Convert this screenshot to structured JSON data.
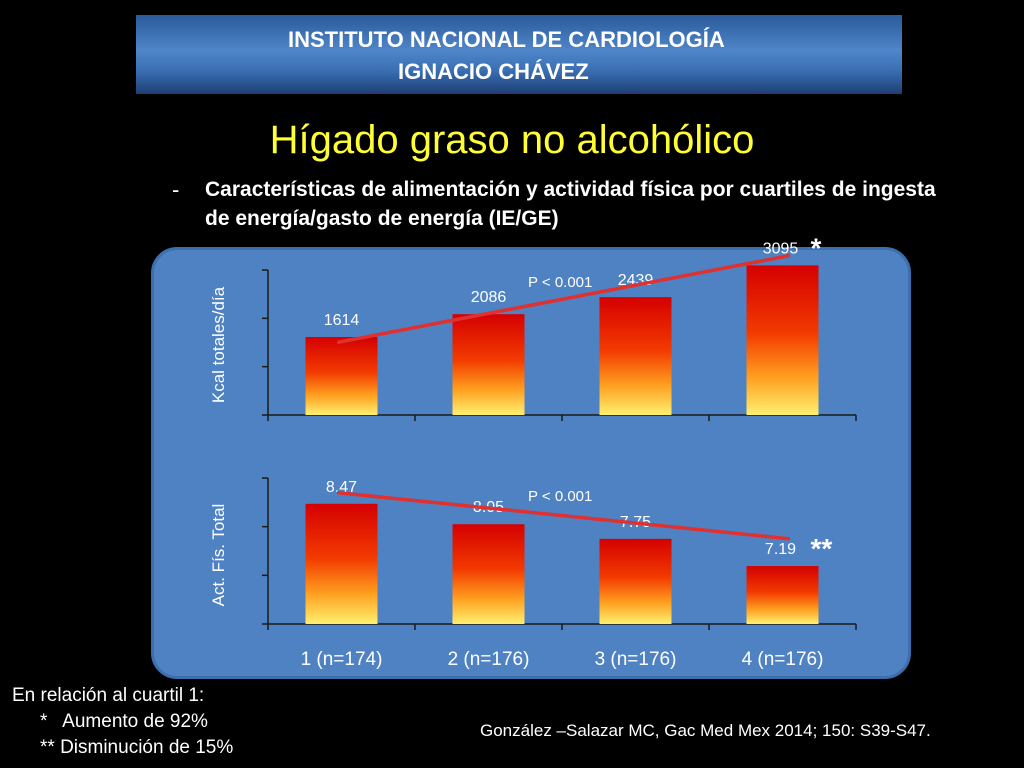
{
  "header": {
    "line1": "INSTITUTO NACIONAL DE CARDIOLOGÍA",
    "line2": "IGNACIO CHÁVEZ"
  },
  "title": "Hígado graso no alcohólico",
  "bullet": {
    "marker": "-",
    "text": "Características de alimentación y actividad física por cuartiles de ingesta de energía/gasto de energía (IE/GE)"
  },
  "chart_data": [
    {
      "type": "bar",
      "ylabel": "Kcal totales/día",
      "categories": [
        "1 (n=174)",
        "2 (n=176)",
        "3 (n=176)",
        "4 (n=176)"
      ],
      "values": [
        1614,
        2086,
        2439,
        3095
      ],
      "data_labels": [
        "1614",
        "2086",
        "2439",
        "3095"
      ],
      "ylim": [
        0,
        3000
      ],
      "trend_label": "P < 0.001",
      "trend": [
        1500,
        3300
      ],
      "marker_index": 3,
      "marker": "*"
    },
    {
      "type": "bar",
      "ylabel": "Act. Fís. Total",
      "categories": [
        "1 (n=174)",
        "2 (n=176)",
        "3 (n=176)",
        "4 (n=176)"
      ],
      "values": [
        8.47,
        8.05,
        7.75,
        7.19
      ],
      "data_labels": [
        "8.47",
        "8.05",
        "7.75",
        "7.19"
      ],
      "ylim": [
        6.0,
        9.0
      ],
      "trend_label": "P < 0.001",
      "trend": [
        8.7,
        7.75
      ],
      "marker_index": 3,
      "marker": "**"
    }
  ],
  "footnote": {
    "heading": "En relación al cuartil 1:",
    "line1": "*   Aumento de 92%",
    "line2": "** Disminución de 15%"
  },
  "source": "González –Salazar MC, Gac Med Mex 2014; 150: S39-S47.",
  "colors": {
    "background": "#000000",
    "title": "#ffff33",
    "panel": "#4f82c3",
    "bar_top": "#e00000",
    "bar_bottom": "#ffee66",
    "trend_line": "#e03030"
  }
}
